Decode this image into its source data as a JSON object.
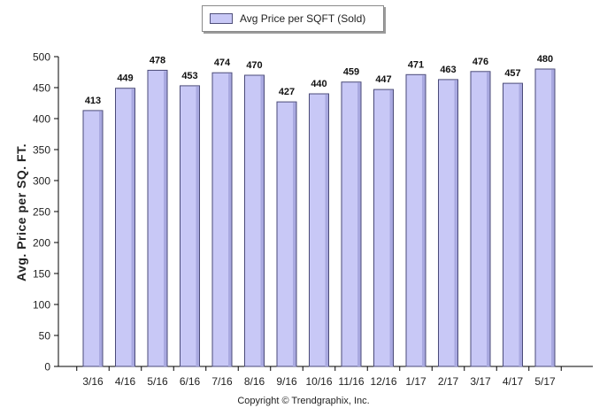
{
  "legend": {
    "label": "Avg Price per SQFT (Sold)"
  },
  "copyright": "Copyright © Trendgraphix, Inc.",
  "colors": {
    "bar_fill": "#c8c8f6",
    "bar_stroke": "#4a4a78",
    "bar_shade": "#a9a9e0"
  },
  "chart_data": {
    "type": "bar",
    "title": "",
    "xlabel": "",
    "ylabel": "Avg. Price per SQ. FT.",
    "categories": [
      "3/16",
      "4/16",
      "5/16",
      "6/16",
      "7/16",
      "8/16",
      "9/16",
      "10/16",
      "11/16",
      "12/16",
      "1/17",
      "2/17",
      "3/17",
      "4/17",
      "5/17"
    ],
    "series": [
      {
        "name": "Avg Price per SQFT (Sold)",
        "values": [
          413,
          449,
          478,
          453,
          474,
          470,
          427,
          440,
          459,
          447,
          471,
          463,
          476,
          457,
          480
        ]
      }
    ],
    "ylim": [
      0,
      500
    ],
    "yticks": [
      0,
      50,
      100,
      150,
      200,
      250,
      300,
      350,
      400,
      450,
      500
    ],
    "grid": false,
    "legend_position": "top-center",
    "data_labels": true
  }
}
